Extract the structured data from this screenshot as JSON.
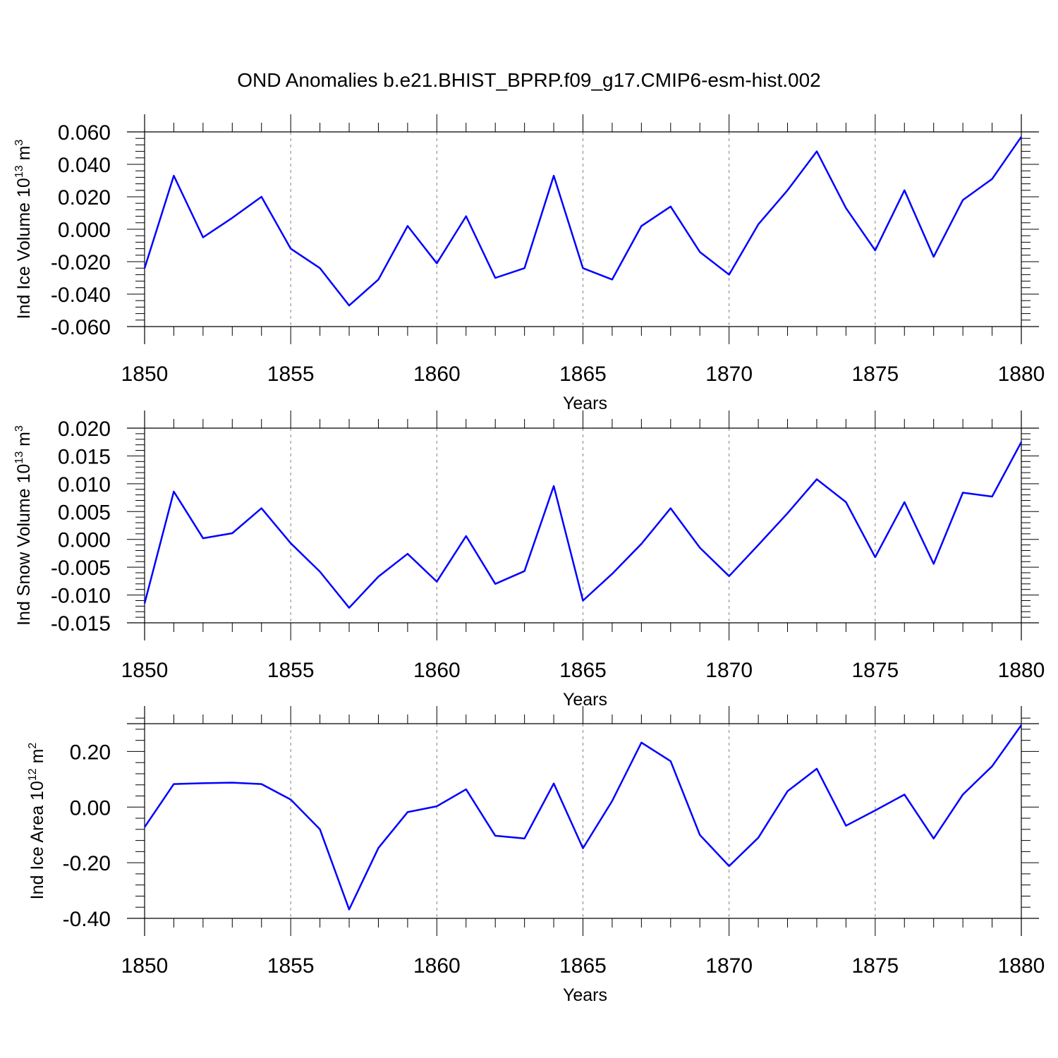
{
  "title": "OND Anomalies b.e21.BHIST_BPRP.f09_g17.CMIP6-esm-hist.002",
  "colors": {
    "line": "#0000ff",
    "axis": "#000000",
    "grid": "#808080"
  },
  "chart_data": [
    {
      "type": "line",
      "ylabel": "Ind Ice Volume 10",
      "ylabel_sup": "13",
      "ylabel_unit": "m",
      "ylabel_unit_sup": "3",
      "xlabel": "Years",
      "xlim": [
        1850,
        1880
      ],
      "ylim": [
        -0.06,
        0.06
      ],
      "xticks": [
        1850,
        1855,
        1860,
        1865,
        1870,
        1875,
        1880
      ],
      "yticks": [
        -0.06,
        -0.04,
        -0.02,
        0.0,
        0.02,
        0.04,
        0.06
      ],
      "yticklabels": [
        "-0.060",
        "-0.040",
        "-0.020",
        "0.000",
        "0.020",
        "0.040",
        "0.060"
      ],
      "grid_x": "dashed at major ticks",
      "series": [
        {
          "x": [
            1850,
            1851,
            1852,
            1853,
            1854,
            1855,
            1856,
            1857,
            1858,
            1859,
            1860,
            1861,
            1862,
            1863,
            1864,
            1865,
            1866,
            1867,
            1868,
            1869,
            1870,
            1871,
            1872,
            1873,
            1874,
            1875,
            1876,
            1877,
            1878,
            1879,
            1880
          ],
          "values": [
            -0.024,
            0.033,
            -0.005,
            0.007,
            0.02,
            -0.012,
            -0.024,
            -0.047,
            -0.031,
            0.002,
            -0.021,
            0.008,
            -0.03,
            -0.024,
            0.033,
            -0.024,
            -0.031,
            0.002,
            0.014,
            -0.014,
            -0.028,
            0.003,
            0.024,
            0.048,
            0.013,
            -0.013,
            0.024,
            -0.017,
            0.018,
            0.031,
            0.057
          ]
        }
      ]
    },
    {
      "type": "line",
      "ylabel": "Ind Snow Volume 10",
      "ylabel_sup": "13",
      "ylabel_unit": "m",
      "ylabel_unit_sup": "3",
      "xlabel": "Years",
      "xlim": [
        1850,
        1880
      ],
      "ylim": [
        -0.015,
        0.02
      ],
      "xticks": [
        1850,
        1855,
        1860,
        1865,
        1870,
        1875,
        1880
      ],
      "yticks": [
        -0.015,
        -0.01,
        -0.005,
        0.0,
        0.005,
        0.01,
        0.015,
        0.02
      ],
      "yticklabels": [
        "-0.015",
        "-0.010",
        "-0.005",
        "0.000",
        "0.005",
        "0.010",
        "0.015",
        "0.020"
      ],
      "grid_x": "dashed at major ticks",
      "series": [
        {
          "x": [
            1850,
            1851,
            1852,
            1853,
            1854,
            1855,
            1856,
            1857,
            1858,
            1859,
            1860,
            1861,
            1862,
            1863,
            1864,
            1865,
            1866,
            1867,
            1868,
            1869,
            1870,
            1871,
            1872,
            1873,
            1874,
            1875,
            1876,
            1877,
            1878,
            1879,
            1880
          ],
          "values": [
            -0.0115,
            0.0086,
            0.0002,
            0.0011,
            0.0056,
            -0.0007,
            -0.0058,
            -0.0123,
            -0.0067,
            -0.0026,
            -0.0076,
            0.0006,
            -0.008,
            -0.0057,
            0.0096,
            -0.011,
            -0.0062,
            -0.0008,
            0.0056,
            -0.0015,
            -0.0066,
            -0.001,
            0.0047,
            0.0108,
            0.0067,
            -0.0032,
            0.0067,
            -0.0044,
            0.0084,
            0.0077,
            0.0175
          ]
        }
      ]
    },
    {
      "type": "line",
      "ylabel": "Ind Ice Area 10",
      "ylabel_sup": "12",
      "ylabel_unit": "m",
      "ylabel_unit_sup": "2",
      "xlabel": "Years",
      "xlim": [
        1850,
        1880
      ],
      "ylim": [
        -0.4,
        0.3
      ],
      "xticks": [
        1850,
        1855,
        1860,
        1865,
        1870,
        1875,
        1880
      ],
      "yticks": [
        -0.4,
        -0.2,
        0.0,
        0.2
      ],
      "yticklabels": [
        "-0.40",
        "-0.20",
        "0.00",
        "0.20"
      ],
      "grid_x": "dashed at major ticks",
      "series": [
        {
          "x": [
            1850,
            1851,
            1852,
            1853,
            1854,
            1855,
            1856,
            1857,
            1858,
            1859,
            1860,
            1861,
            1862,
            1863,
            1864,
            1865,
            1866,
            1867,
            1868,
            1869,
            1870,
            1871,
            1872,
            1873,
            1874,
            1875,
            1876,
            1877,
            1878,
            1879,
            1880
          ],
          "values": [
            -0.072,
            0.083,
            0.086,
            0.088,
            0.083,
            0.027,
            -0.08,
            -0.368,
            -0.147,
            -0.018,
            0.003,
            0.064,
            -0.103,
            -0.113,
            0.085,
            -0.148,
            0.022,
            0.232,
            0.165,
            -0.1,
            -0.212,
            -0.11,
            0.057,
            0.138,
            -0.067,
            -0.012,
            0.045,
            -0.113,
            0.045,
            0.147,
            0.295
          ]
        }
      ]
    }
  ]
}
